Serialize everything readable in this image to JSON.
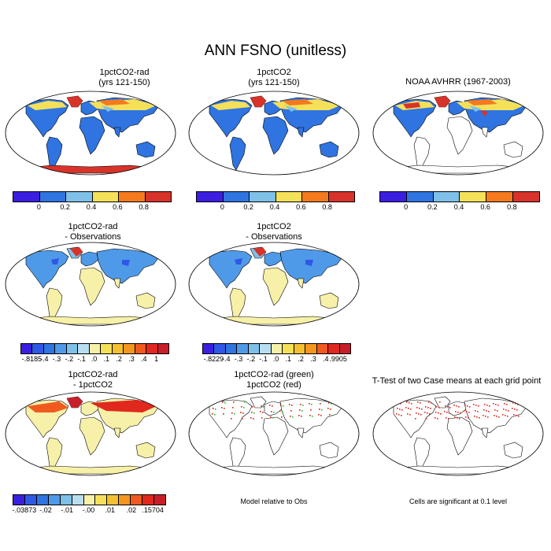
{
  "title": "ANN FSNO (unitless)",
  "panels": [
    {
      "title1": "1pctCO2-rad",
      "title2": "(yrs 121-150)"
    },
    {
      "title1": "1pctCO2",
      "title2": "(yrs 121-150)"
    },
    {
      "title1": "NOAA AVHRR (1967-2003)",
      "title2": ""
    },
    {
      "title1": "1pctCO2-rad",
      "title2": "- Observations"
    },
    {
      "title1": "1pctCO2",
      "title2": "- Observations"
    },
    {
      "title1": "1pctCO2-rad",
      "title2": "- 1pctCO2"
    },
    {
      "title1": "1pctCO2-rad (green)",
      "title2": "1pctCO2 (red)"
    },
    {
      "title1": "T-Test of two Case means at each grid point",
      "title2": ""
    }
  ],
  "colorbars": {
    "abs": {
      "colors": [
        "#3b1fe0",
        "#2f74e0",
        "#7fc0e8",
        "#f5e05a",
        "#f57a1e",
        "#d7332a"
      ],
      "labels": [
        "0",
        "0.2",
        "0.4",
        "0.6",
        "0.8"
      ]
    },
    "diff_rad_obs": {
      "colors": [
        "#3b1fe0",
        "#2f58e6",
        "#2f74e0",
        "#4f9ae8",
        "#7fc0e8",
        "#b9def0",
        "#f7f0a8",
        "#f5e05a",
        "#f5c030",
        "#f5961e",
        "#f05a1e",
        "#e0281e",
        "#c81e2a"
      ],
      "labels": [
        "-.8185",
        "-.4",
        "-.3",
        "-.2",
        "-.1",
        ".0",
        ".1",
        ".2",
        ".3",
        ".4",
        "1"
      ]
    },
    "diff_co2_obs": {
      "colors": [
        "#3b1fe0",
        "#2f58e6",
        "#2f74e0",
        "#4f9ae8",
        "#7fc0e8",
        "#b9def0",
        "#f7f0a8",
        "#f5e05a",
        "#f5c030",
        "#f5961e",
        "#f05a1e",
        "#e0281e",
        "#c81e2a"
      ],
      "labels": [
        "-.8229",
        "-.4",
        "-.3",
        "-.2",
        "-.1",
        ".0",
        ".1",
        ".2",
        ".3",
        ".4",
        ".9905"
      ]
    },
    "diff_cases": {
      "colors": [
        "#3b1fe0",
        "#2f58e6",
        "#2f74e0",
        "#4f9ae8",
        "#7fc0e8",
        "#b9def0",
        "#f7f0a8",
        "#f5e05a",
        "#f5c030",
        "#f5961e",
        "#f05a1e",
        "#e0281e",
        "#c81e2a"
      ],
      "labels": [
        "-.03873",
        "-.02",
        "-.01",
        "-.00",
        ".01",
        ".02",
        ".15704"
      ]
    }
  },
  "notes": {
    "model_rel_obs": "Model relative to Obs",
    "significance": "Cells are significant at 0.1 level"
  }
}
